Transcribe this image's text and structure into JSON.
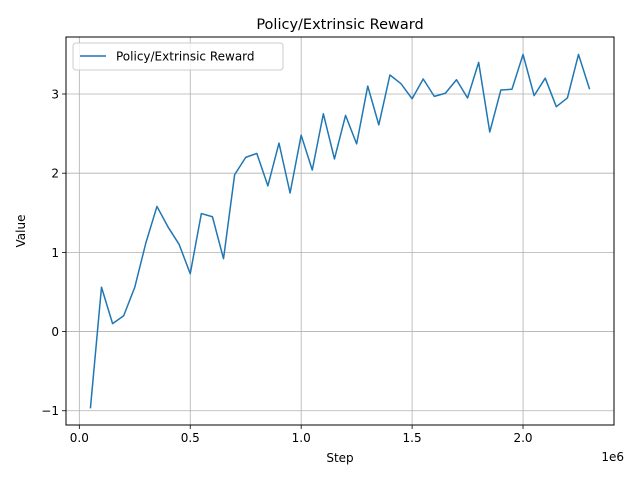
{
  "chart_data": {
    "type": "line",
    "title": "Policy/Extrinsic Reward",
    "xlabel": "Step",
    "ylabel": "Value",
    "x_offset_label": "1e6",
    "xlim": [
      -0.06,
      2.41
    ],
    "ylim": [
      -1.18,
      3.72
    ],
    "x_ticks": [
      0.0,
      0.5,
      1.0,
      1.5,
      2.0
    ],
    "x_tick_labels": [
      "0.0",
      "0.5",
      "1.0",
      "1.5",
      "2.0"
    ],
    "y_ticks": [
      -1,
      0,
      1,
      2,
      3
    ],
    "y_tick_labels": [
      "−1",
      "0",
      "1",
      "2",
      "3"
    ],
    "grid": true,
    "legend_position": "upper-left",
    "series": [
      {
        "name": "Policy/Extrinsic Reward",
        "color": "#1f77b4",
        "x": [
          0.05,
          0.1,
          0.15,
          0.2,
          0.25,
          0.3,
          0.35,
          0.4,
          0.45,
          0.5,
          0.55,
          0.6,
          0.65,
          0.7,
          0.75,
          0.8,
          0.85,
          0.9,
          0.95,
          1.0,
          1.05,
          1.1,
          1.15,
          1.2,
          1.25,
          1.3,
          1.35,
          1.4,
          1.45,
          1.5,
          1.55,
          1.6,
          1.65,
          1.7,
          1.75,
          1.8,
          1.85,
          1.9,
          1.95,
          2.0,
          2.05,
          2.1,
          2.15,
          2.2,
          2.25,
          2.3
        ],
        "y": [
          -0.97,
          0.56,
          0.1,
          0.2,
          0.56,
          1.12,
          1.58,
          1.32,
          1.1,
          0.73,
          1.49,
          1.45,
          0.92,
          1.98,
          2.2,
          2.25,
          1.84,
          2.38,
          1.75,
          2.48,
          2.04,
          2.75,
          2.18,
          2.73,
          2.37,
          3.1,
          2.61,
          3.24,
          3.13,
          2.94,
          3.19,
          2.97,
          3.01,
          3.18,
          2.95,
          3.4,
          2.52,
          3.05,
          3.06,
          3.5,
          2.98,
          3.2,
          2.84,
          2.95,
          3.5,
          3.06
        ]
      }
    ]
  }
}
